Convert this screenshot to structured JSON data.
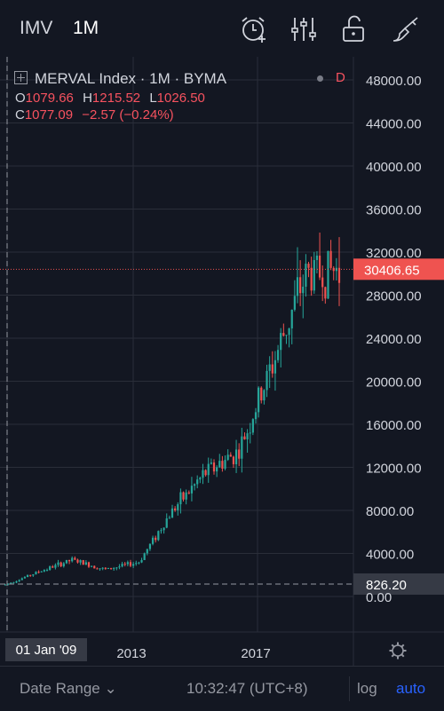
{
  "header": {
    "symbol": "IMV",
    "timeframe": "1M",
    "icons": [
      "alarm-add-icon",
      "indicators-icon",
      "unlock-icon",
      "drawing-tools-icon"
    ]
  },
  "legend": {
    "title": "MERVAL Index · 1M · BYMA",
    "data_mode": "D",
    "o_label": "O",
    "o_value": "1079.66",
    "h_label": "H",
    "h_value": "1215.52",
    "l_label": "L",
    "l_value": "1026.50",
    "c_label": "C",
    "c_value": "1077.09",
    "change": "−2.57 (−0.24%)"
  },
  "price_axis": {
    "ticks": [
      "48000.00",
      "44000.00",
      "40000.00",
      "36000.00",
      "32000.00",
      "28000.00",
      "24000.00",
      "20000.00",
      "16000.00",
      "12000.00",
      "8000.00",
      "4000.00",
      "0.00"
    ],
    "last_price": "30406.65",
    "crosshair_price": "826.20"
  },
  "time_axis": {
    "labels": [
      "2013",
      "2017"
    ],
    "crosshair_date": "01 Jan '09"
  },
  "colors": {
    "background": "#131722",
    "up": "#26a69a",
    "down": "#ef5350",
    "grid": "#2a2e39",
    "last_price_bg": "#ef5350",
    "accent": "#2962ff"
  },
  "footer": {
    "date_range": "Date Range",
    "clock": "10:32:47 (UTC+8)",
    "log": "log",
    "auto": "auto"
  },
  "chart_data": {
    "type": "line",
    "title": "",
    "xlabel": "",
    "ylabel": "",
    "ylim": [
      0,
      48000
    ],
    "x": [
      "2009",
      "2010",
      "2011",
      "2012",
      "2013",
      "2014",
      "2015",
      "2016",
      "2017",
      "2018",
      "2019"
    ],
    "series": [
      {
        "values": [
          1100,
          2300,
          3400,
          2500,
          3200,
          8000,
          11500,
          13500,
          21500,
          30000,
          30406.65
        ]
      }
    ]
  }
}
